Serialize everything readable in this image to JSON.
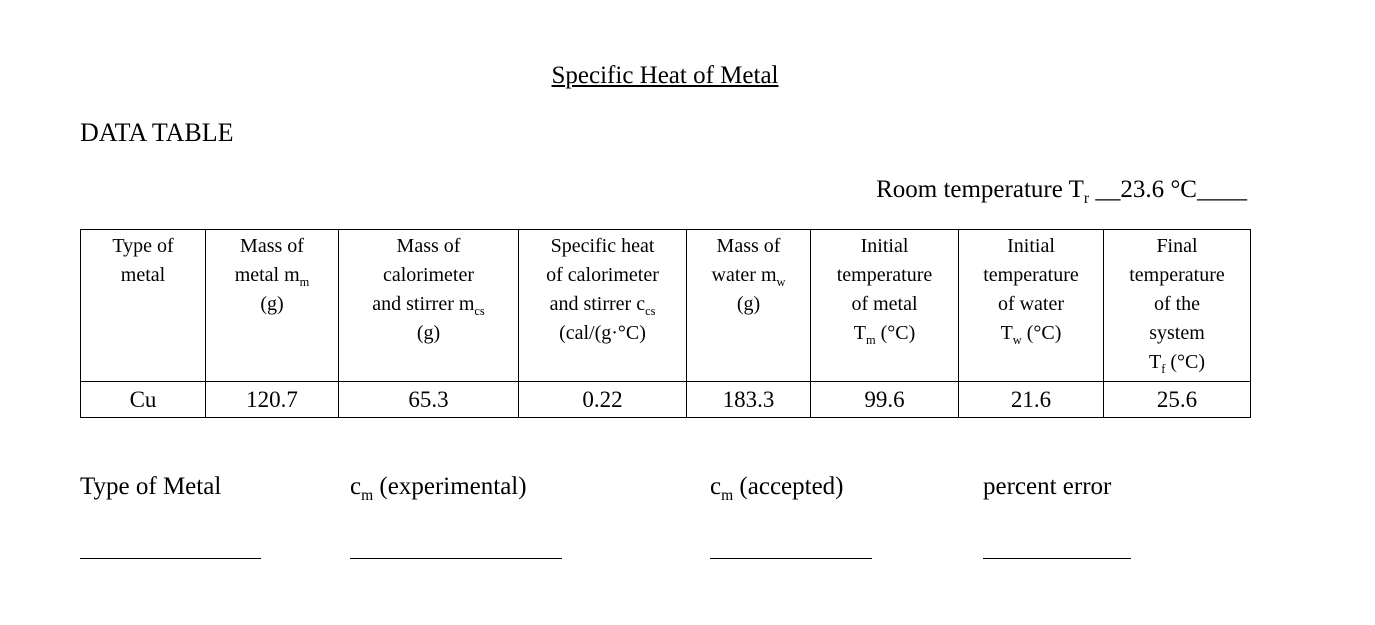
{
  "page": {
    "title": "Specific Heat of Metal",
    "section_heading": "DATA TABLE"
  },
  "room_temperature": {
    "parts": [
      {
        "t": "Room temperature T"
      },
      {
        "t": "r",
        "sub": true
      },
      {
        "t": " __23.6 °C____"
      }
    ]
  },
  "table": {
    "headers": [
      {
        "parts": [
          {
            "t": "Type of"
          },
          {
            "br": true
          },
          {
            "t": "metal"
          }
        ]
      },
      {
        "parts": [
          {
            "t": "Mass of"
          },
          {
            "br": true
          },
          {
            "t": "metal m"
          },
          {
            "t": "m",
            "sub": true
          },
          {
            "br": true
          },
          {
            "t": "(g)"
          }
        ]
      },
      {
        "parts": [
          {
            "t": "Mass of"
          },
          {
            "br": true
          },
          {
            "t": "calorimeter"
          },
          {
            "br": true
          },
          {
            "t": "and stirrer m"
          },
          {
            "t": "cs",
            "sub": true
          },
          {
            "br": true
          },
          {
            "t": "(g)"
          }
        ]
      },
      {
        "parts": [
          {
            "t": "Specific heat"
          },
          {
            "br": true
          },
          {
            "t": "of calorimeter"
          },
          {
            "br": true
          },
          {
            "t": "and stirrer c"
          },
          {
            "t": "cs",
            "sub": true
          },
          {
            "br": true
          },
          {
            "t": "(cal/(g·°C)"
          }
        ]
      },
      {
        "parts": [
          {
            "t": "Mass of"
          },
          {
            "br": true
          },
          {
            "t": "water m"
          },
          {
            "t": "w",
            "sub": true
          },
          {
            "br": true
          },
          {
            "t": "(g)"
          }
        ]
      },
      {
        "parts": [
          {
            "t": "Initial"
          },
          {
            "br": true
          },
          {
            "t": "temperature"
          },
          {
            "br": true
          },
          {
            "t": "of metal"
          },
          {
            "br": true
          },
          {
            "t": "T"
          },
          {
            "t": "m",
            "sub": true
          },
          {
            "t": " (°C)"
          }
        ]
      },
      {
        "parts": [
          {
            "t": "Initial"
          },
          {
            "br": true
          },
          {
            "t": "temperature"
          },
          {
            "br": true
          },
          {
            "t": "of water"
          },
          {
            "br": true
          },
          {
            "t": "T"
          },
          {
            "t": "w",
            "sub": true
          },
          {
            "t": " (°C)"
          }
        ]
      },
      {
        "parts": [
          {
            "t": "Final"
          },
          {
            "br": true
          },
          {
            "t": "temperature"
          },
          {
            "br": true
          },
          {
            "t": "of the"
          },
          {
            "br": true
          },
          {
            "t": "system"
          },
          {
            "br": true
          },
          {
            "t": "T"
          },
          {
            "t": "f",
            "sub": true
          },
          {
            "t": " (°C)"
          }
        ]
      }
    ],
    "row": [
      "Cu",
      "120.7",
      "65.3",
      "0.22",
      "183.3",
      "99.6",
      "21.6",
      "25.6"
    ]
  },
  "results": {
    "labels": [
      {
        "parts": [
          {
            "t": "Type of Metal"
          }
        ]
      },
      {
        "parts": [
          {
            "t": "c"
          },
          {
            "t": "m",
            "sub": true
          },
          {
            "t": " (experimental)"
          }
        ]
      },
      {
        "parts": [
          {
            "t": "c"
          },
          {
            "t": "m",
            "sub": true
          },
          {
            "t": " (accepted)"
          }
        ]
      },
      {
        "parts": [
          {
            "t": "percent error"
          }
        ]
      }
    ]
  }
}
